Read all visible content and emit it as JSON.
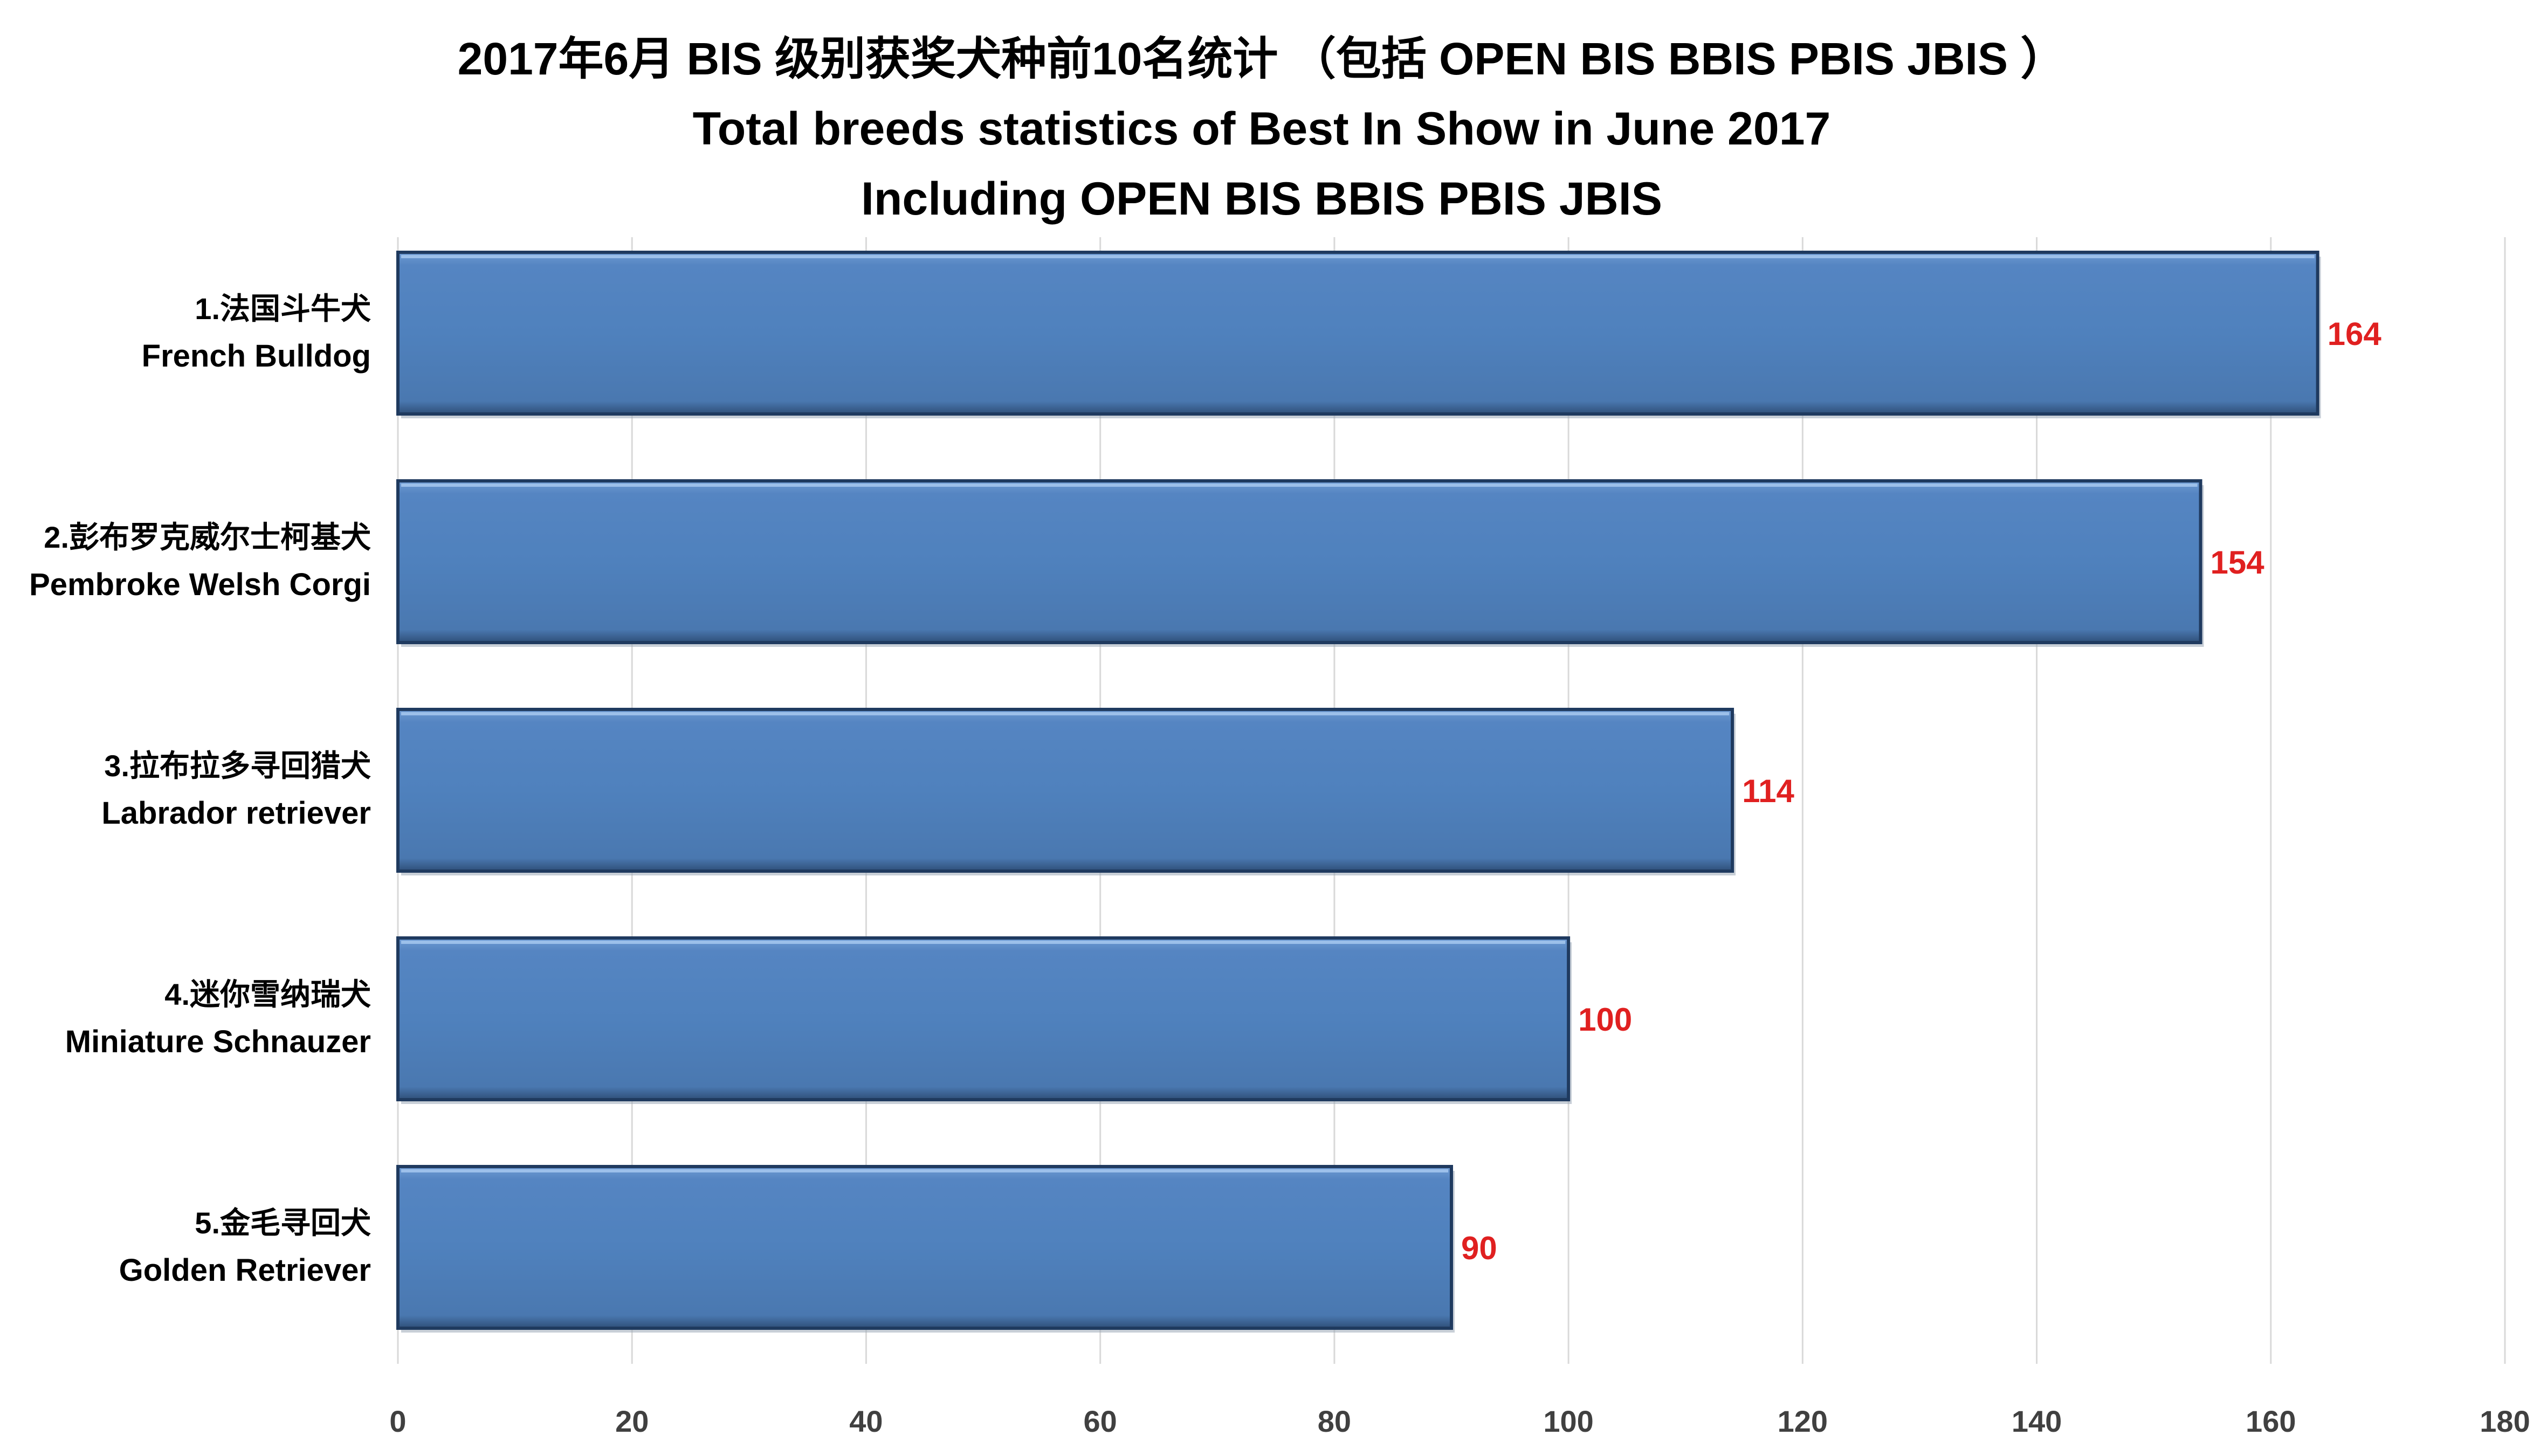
{
  "chart_data": {
    "type": "bar",
    "orientation": "horizontal",
    "title": "2017年6月 BIS 级别获奖犬种前10名统计 （包括 OPEN BIS BBIS PBIS JBIS ）",
    "subtitle_1": "Total breeds statistics of Best In Show in June 2017",
    "subtitle_2": "Including OPEN BIS BBIS PBIS JBIS",
    "categories": [
      {
        "cn": "1.法国斗牛犬",
        "en": "French Bulldog"
      },
      {
        "cn": "2.彭布罗克威尔士柯基犬",
        "en": "Pembroke Welsh Corgi"
      },
      {
        "cn": "3.拉布拉多寻回猎犬",
        "en": "Labrador retriever"
      },
      {
        "cn": "4.迷你雪纳瑞犬",
        "en": "Miniature Schnauzer"
      },
      {
        "cn": "5.金毛寻回犬",
        "en": "Golden Retriever"
      }
    ],
    "values": [
      164,
      154,
      114,
      100,
      90
    ],
    "xlim": [
      0,
      180
    ],
    "xticks": [
      0,
      20,
      40,
      60,
      80,
      100,
      120,
      140,
      160,
      180
    ],
    "grid": "vertical",
    "legend": "none",
    "colors": {
      "bar_fill": "#4f81bd",
      "bar_edge": "#1f3a5f",
      "data_label": "#e02020",
      "grid": "#d9d9d9",
      "text": "#000000",
      "tick_text": "#404040"
    }
  }
}
